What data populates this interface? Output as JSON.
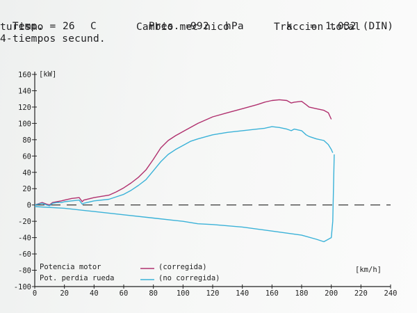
{
  "header": {
    "temp_label": "Temp. =",
    "temp_value": "26",
    "temp_unit": "C",
    "vehicle_type": "turismo",
    "engine": "4-tiempos secund.",
    "pres_label": "Pres. =",
    "pres_value": "992",
    "pres_unit": "hPa",
    "gearbox": "Cambio mec nico",
    "k_label": "k",
    "k_eq": "=",
    "k_value": "1.032 (DIN)",
    "traction": "Traccion total"
  },
  "colors": {
    "corrected": "#b0306e",
    "uncorrected": "#3ab2d8",
    "axis": "#222222"
  },
  "chart_data": {
    "type": "line",
    "title": "",
    "xlabel": "[km/h]",
    "ylabel": "[kW]",
    "xlim": [
      0,
      240
    ],
    "ylim": [
      -100,
      160
    ],
    "xticks": [
      0,
      20,
      40,
      60,
      80,
      100,
      120,
      140,
      160,
      180,
      200,
      220,
      240
    ],
    "yticks": [
      -100,
      -80,
      -60,
      -40,
      -20,
      0,
      20,
      40,
      60,
      80,
      100,
      120,
      140,
      160
    ],
    "grid": false,
    "zero_line": "dashed",
    "legend": {
      "position": "bottom-left",
      "rows": [
        {
          "label": "Potencia motor",
          "line_series": "corrected",
          "line_text": "(corregida)"
        },
        {
          "label": "Pot. perdia rueda",
          "line_series": "uncorrected",
          "line_text": "(no corregida)"
        }
      ]
    },
    "series": [
      {
        "key": "corrected",
        "x": [
          0,
          5,
          8,
          10,
          12,
          15,
          18,
          20,
          25,
          30,
          32,
          33,
          40,
          50,
          55,
          60,
          65,
          70,
          75,
          80,
          85,
          90,
          95,
          100,
          105,
          110,
          120,
          130,
          140,
          150,
          155,
          160,
          165,
          170,
          173,
          175,
          180,
          183,
          185,
          190,
          195,
          198,
          200
        ],
        "y": [
          0,
          3,
          1,
          0,
          3,
          4,
          5,
          6,
          8,
          9,
          4,
          6,
          9,
          12,
          16,
          21,
          27,
          34,
          43,
          56,
          70,
          79,
          85,
          90,
          95,
          100,
          108,
          113,
          118,
          123,
          126,
          128,
          129,
          128,
          125,
          126,
          127,
          123,
          120,
          118,
          116,
          113,
          105
        ]
      },
      {
        "key": "uncorrected",
        "x": [
          0,
          5,
          8,
          10,
          12,
          15,
          18,
          20,
          25,
          30,
          32,
          33,
          40,
          50,
          55,
          60,
          65,
          70,
          75,
          80,
          85,
          90,
          95,
          100,
          105,
          110,
          120,
          130,
          140,
          150,
          155,
          160,
          165,
          170,
          173,
          175,
          180,
          183,
          185,
          190,
          195,
          198,
          200,
          201
        ],
        "y": [
          0,
          2,
          0,
          -1,
          2,
          3,
          3,
          4,
          5,
          6,
          1,
          2,
          5,
          7,
          10,
          13,
          18,
          24,
          31,
          42,
          53,
          62,
          68,
          73,
          78,
          81,
          86,
          89,
          91,
          93,
          94,
          96,
          95,
          93,
          91,
          93,
          91,
          86,
          84,
          81,
          79,
          74,
          68,
          64
        ]
      },
      {
        "key": "uncorrected_loss",
        "x": [
          0,
          20,
          40,
          60,
          80,
          100,
          110,
          120,
          140,
          160,
          180,
          190,
          195,
          198,
          200,
          201,
          202
        ],
        "y": [
          -2,
          -4,
          -8,
          -12,
          -16,
          -20,
          -23,
          -24,
          -27,
          -32,
          -37,
          -42,
          -45,
          -42,
          -40,
          -20,
          62
        ]
      }
    ]
  }
}
